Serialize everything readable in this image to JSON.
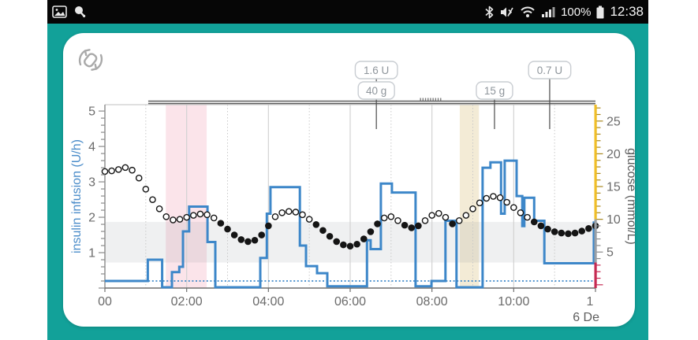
{
  "status_bar": {
    "time": "12:38",
    "battery_percent": "100%",
    "icons_left": [
      "image-notification",
      "search-notification"
    ],
    "icons_right": [
      "bluetooth",
      "sound-muted",
      "wifi",
      "cell-signal",
      "battery"
    ]
  },
  "card": {
    "corner_icon": "closed-loop-sync"
  },
  "chart_data": {
    "type": "combo-step-scatter",
    "x_axis": {
      "range_hours": [
        0,
        12
      ],
      "ticks": [
        {
          "hour": 0,
          "label": "00"
        },
        {
          "hour": 2,
          "label": "02:00"
        },
        {
          "hour": 4,
          "label": "04:00"
        },
        {
          "hour": 6,
          "label": "06:00"
        },
        {
          "hour": 8,
          "label": "08:00"
        },
        {
          "hour": 10,
          "label": "10:00"
        },
        {
          "hour": 12,
          "label": "1"
        }
      ],
      "date_label": "6 De",
      "grid_solid_hours": [
        2,
        4,
        6,
        8,
        10
      ],
      "grid_dotted_hours": [
        1,
        3,
        5,
        7,
        9,
        11
      ]
    },
    "y_left": {
      "label": "insulin infusion (U/h)",
      "ticks": [
        1,
        2,
        3,
        4,
        5
      ],
      "range": [
        0,
        5.18
      ],
      "color": "#4A8CC9"
    },
    "y_right": {
      "label": "glucose (mmol/L)",
      "ticks": [
        5,
        10,
        15,
        20,
        25
      ],
      "range": [
        -0.5,
        27.5
      ],
      "high_zone_from": 10,
      "low_zone_below": 3.4,
      "high_color": "#F0BE27",
      "low_color": "#C62A52"
    },
    "target_band_mmol": [
      3.4,
      9.6
    ],
    "highlight_bands": [
      {
        "from_hour": 1.49,
        "to_hour": 2.49,
        "color": "rgba(236,130,160,0.22)"
      },
      {
        "from_hour": 8.68,
        "to_hour": 9.15,
        "color": "rgba(214,190,120,0.30)"
      }
    ],
    "events": [
      {
        "label": "1.6 U",
        "row": 0,
        "hour": 6.64
      },
      {
        "label": "40 g",
        "row": 1,
        "hour": 6.64
      },
      {
        "label": "15 g",
        "row": 1,
        "hour": 9.53
      },
      {
        "label": "0.7 U",
        "row": 0,
        "hour": 10.88
      }
    ],
    "suspend_bar": {
      "from_hour": 1.06,
      "to_hour": 12.0,
      "dashed_from": 7.72,
      "dashed_to": 8.24
    },
    "basal_dotted_rate": 0.2,
    "insulin_color": "#3D87C9",
    "insulin_steps": [
      [
        0,
        1.05,
        0.2
      ],
      [
        1.05,
        1.4,
        0.8
      ],
      [
        1.4,
        1.64,
        0
      ],
      [
        1.64,
        1.82,
        0.45
      ],
      [
        1.82,
        1.91,
        0.6
      ],
      [
        1.91,
        2.06,
        1.6
      ],
      [
        2.06,
        2.51,
        2.3
      ],
      [
        2.51,
        2.7,
        1.3
      ],
      [
        2.7,
        3.8,
        0
      ],
      [
        3.8,
        3.96,
        0.85
      ],
      [
        3.96,
        4.05,
        2.1
      ],
      [
        4.05,
        4.77,
        2.85
      ],
      [
        4.77,
        4.92,
        1.2
      ],
      [
        4.92,
        5.19,
        0.62
      ],
      [
        5.19,
        5.44,
        0.42
      ],
      [
        5.44,
        6.41,
        0.05
      ],
      [
        6.41,
        6.5,
        1.35
      ],
      [
        6.5,
        6.75,
        1.1
      ],
      [
        6.75,
        7.02,
        2.95
      ],
      [
        7.02,
        7.6,
        2.7
      ],
      [
        7.6,
        7.99,
        0.05
      ],
      [
        7.99,
        8.33,
        0.2
      ],
      [
        8.33,
        8.6,
        1.9
      ],
      [
        8.6,
        9.24,
        0
      ],
      [
        9.24,
        9.43,
        3.4
      ],
      [
        9.43,
        9.69,
        3.55
      ],
      [
        9.69,
        9.78,
        2.1
      ],
      [
        9.78,
        10.07,
        3.6
      ],
      [
        10.07,
        10.21,
        2.6
      ],
      [
        10.21,
        10.26,
        1.75
      ],
      [
        10.26,
        10.5,
        2.55
      ],
      [
        10.5,
        10.75,
        1.9
      ],
      [
        10.75,
        11.96,
        0.7
      ],
      [
        11.96,
        12,
        1.85
      ]
    ],
    "glucose_series": {
      "interval_min": 10,
      "start_hour": 0,
      "unit": "mmol/L",
      "values": [
        17.3,
        17.4,
        17.6,
        17.9,
        17.5,
        16.3,
        14.6,
        13.0,
        11.6,
        10.4,
        9.9,
        10.0,
        10.3,
        10.6,
        10.8,
        10.7,
        10.2,
        9.4,
        8.5,
        7.6,
        6.9,
        6.6,
        6.8,
        7.6,
        9.0,
        10.4,
        11.0,
        11.2,
        11.1,
        10.7,
        10.0,
        9.2,
        8.3,
        7.4,
        6.6,
        6.1,
        5.9,
        6.2,
        7.0,
        8.1,
        9.3,
        10.2,
        10.4,
        9.8,
        9.1,
        8.7,
        9.0,
        9.8,
        10.6,
        10.9,
        10.3,
        9.3,
        9.8,
        10.6,
        11.6,
        12.5,
        13.2,
        13.5,
        13.3,
        12.6,
        11.8,
        11.0,
        10.3,
        9.6,
        9.0,
        8.5,
        8.1,
        7.9,
        7.8,
        7.9,
        8.2,
        8.6,
        9.0
      ]
    },
    "open_dot_threshold": 9.7
  }
}
